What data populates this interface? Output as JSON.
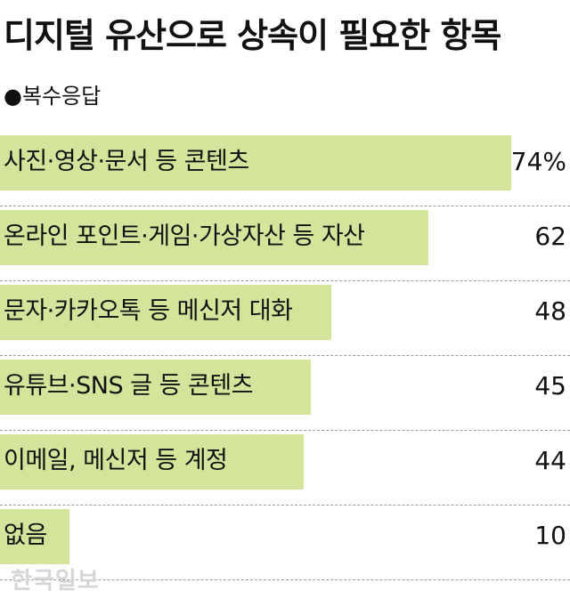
{
  "chart_data": {
    "type": "bar",
    "orientation": "horizontal",
    "title": "디지털 유산으로 상속이 필요한 항목",
    "subtitle": "●복수응답",
    "categories": [
      "사진·영상·문서 등 콘텐츠",
      "온라인 포인트·게임·가상자산 등 자산",
      "문자·카카오톡 등 메신저 대화",
      "유튜브·SNS 글 등 콘텐츠",
      "이메일, 메신저 등 계정",
      "없음"
    ],
    "values": [
      74,
      62,
      48,
      45,
      44,
      10
    ],
    "value_labels": [
      "74%",
      "62",
      "48",
      "45",
      "44",
      "10"
    ],
    "unit": "%",
    "xlim": [
      0,
      100
    ],
    "grid": false,
    "legend": "none",
    "colors": {
      "bar": "#d3e49b",
      "text": "#111111",
      "rule": "#9a9a9a",
      "background": "#ffffff"
    }
  },
  "source": "한국일보"
}
